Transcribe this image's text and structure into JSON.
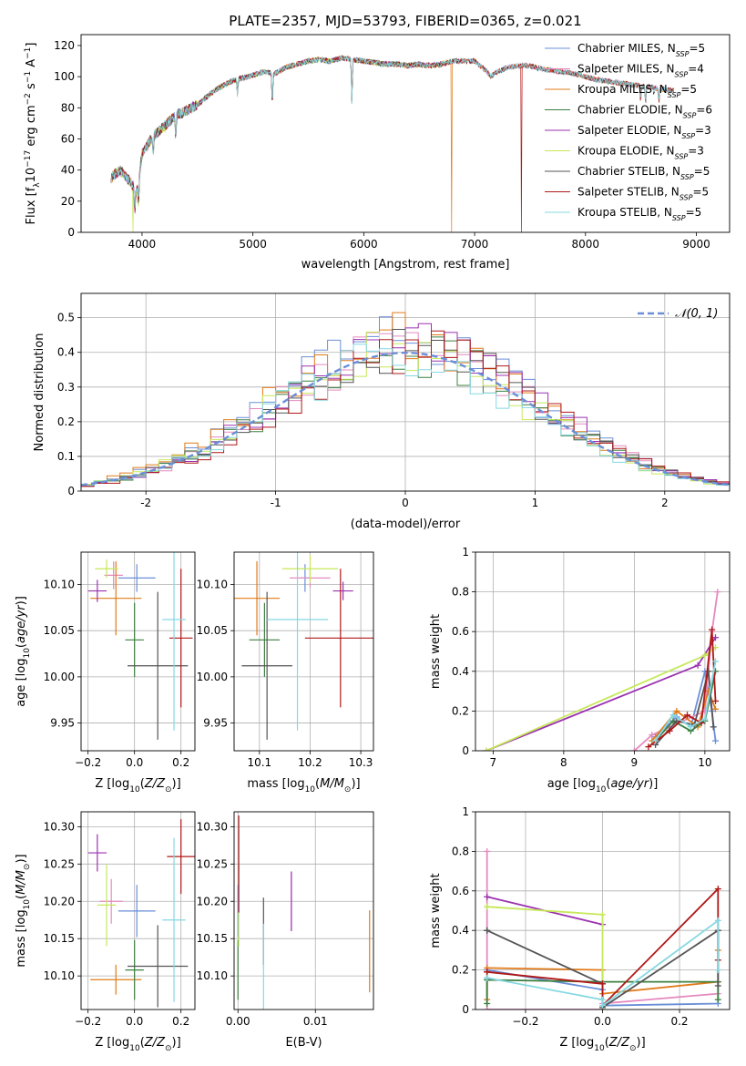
{
  "figure": {
    "title": "PLATE=2357, MJD=53793, FIBERID=0365, z=0.021"
  },
  "chart_data": [
    {
      "type": "line",
      "panel": "spectrum",
      "xlabel": "wavelength [Angstrom, rest frame]",
      "ylabel": "Flux [f_λ10^-17 erg cm^-2 s^-1 A^-1]",
      "xlim": [
        3450,
        9300
      ],
      "ylim": [
        0,
        127
      ],
      "xticks": [
        4000,
        5000,
        6000,
        7000,
        8000,
        9000
      ],
      "yticks": [
        0,
        20,
        40,
        60,
        80,
        100,
        120
      ],
      "grid": false,
      "legend_position": "top-right",
      "continuum": {
        "x": [
          3720,
          3800,
          3900,
          3950,
          4000,
          4100,
          4200,
          4300,
          4400,
          4500,
          4600,
          4700,
          4800,
          4900,
          5000,
          5100,
          5200,
          5300,
          5400,
          5500,
          5600,
          5700,
          5800,
          5900,
          6000,
          6100,
          6200,
          6300,
          6400,
          6500,
          6600,
          6700,
          6800,
          6900,
          7000,
          7100,
          7150,
          7200,
          7300,
          7400,
          7500,
          7600,
          7700,
          7800,
          7900,
          8000,
          8100,
          8200,
          8300,
          8400,
          8500,
          8600,
          8700,
          8800
        ],
        "y": [
          35,
          40,
          32,
          25,
          50,
          62,
          68,
          75,
          78,
          82,
          88,
          93,
          97,
          99,
          101,
          103,
          102,
          106,
          108,
          110,
          111,
          110,
          112,
          111,
          110,
          109,
          108,
          108,
          107,
          108,
          107,
          108,
          110,
          110,
          110,
          104,
          100,
          103,
          106,
          107,
          107,
          105,
          104,
          103,
          102,
          100,
          98,
          97,
          96,
          95,
          94,
          93,
          92,
          91
        ]
      },
      "absorption_features": [
        {
          "x": 3934,
          "y": 14
        },
        {
          "x": 3969,
          "y": 18
        },
        {
          "x": 4101,
          "y": 50
        },
        {
          "x": 4304,
          "y": 62
        },
        {
          "x": 4861,
          "y": 88
        },
        {
          "x": 5175,
          "y": 82
        },
        {
          "x": 5893,
          "y": 83
        },
        {
          "x": 8498,
          "y": 85
        },
        {
          "x": 8542,
          "y": 84
        },
        {
          "x": 8662,
          "y": 84
        }
      ],
      "glitches": [
        {
          "series": "Kroupa MILES, N_SSP=5",
          "x": 6790,
          "y": 0
        },
        {
          "series": "Salpeter STELIB, N_SSP=5",
          "x": 7420,
          "y": 0
        },
        {
          "series": "Kroupa ELODIE, N_SSP=3",
          "x": 3920,
          "y": 0
        }
      ],
      "series": [
        {
          "name": "Chabrier MILES, N_SSP=5",
          "color": "#6a8fd8",
          "wave_end": 8800
        },
        {
          "name": "Salpeter MILES, N_SSP=4",
          "color": "#e589c0",
          "wave_end": 8800
        },
        {
          "name": "Kroupa MILES, N_SSP=5",
          "color": "#e07b1a",
          "wave_end": 8800
        },
        {
          "name": "Chabrier ELODIE, N_SSP=6",
          "color": "#3c8040",
          "wave_end": 6800
        },
        {
          "name": "Salpeter ELODIE, N_SSP=3",
          "color": "#9b32b0",
          "wave_end": 6800
        },
        {
          "name": "Kroupa ELODIE, N_SSP=3",
          "color": "#c6e85a",
          "wave_end": 6800
        },
        {
          "name": "Chabrier STELIB, N_SSP=5",
          "color": "#555555",
          "wave_end": 8800
        },
        {
          "name": "Salpeter STELIB, N_SSP=5",
          "color": "#b01818",
          "wave_end": 8800
        },
        {
          "name": "Kroupa STELIB, N_SSP=5",
          "color": "#86d8e2",
          "wave_end": 8800
        }
      ]
    },
    {
      "type": "histogram",
      "panel": "residuals",
      "xlabel": "(data-model)/error",
      "ylabel": "Normed distribution",
      "xlim": [
        -2.5,
        2.5
      ],
      "ylim": [
        0,
        0.57
      ],
      "xticks": [
        -2,
        -1,
        0,
        1,
        2
      ],
      "yticks": [
        0.0,
        0.1,
        0.2,
        0.3,
        0.4,
        0.5
      ],
      "grid": true,
      "legend_position": "top-right",
      "legend": "𝒩(0, 1)",
      "bin_width": 0.1,
      "reference_curve": {
        "name": "N(0,1)",
        "mean": 0,
        "sigma": 1,
        "style": "dashed",
        "color": "#6a8fd8"
      },
      "series": [
        {
          "color": "#6a8fd8",
          "shift": 0.0,
          "scale": 1.1
        },
        {
          "color": "#e589c0",
          "shift": 0.04,
          "scale": 1.05
        },
        {
          "color": "#e07b1a",
          "shift": -0.03,
          "scale": 1.12
        },
        {
          "color": "#3c8040",
          "shift": 0.02,
          "scale": 1.0
        },
        {
          "color": "#9b32b0",
          "shift": 0.05,
          "scale": 1.08
        },
        {
          "color": "#c6e85a",
          "shift": -0.05,
          "scale": 1.02
        },
        {
          "color": "#555555",
          "shift": 0.01,
          "scale": 1.04
        },
        {
          "color": "#b01818",
          "shift": 0.08,
          "scale": 1.0
        },
        {
          "color": "#86d8e2",
          "shift": -0.02,
          "scale": 0.97
        }
      ]
    },
    {
      "type": "scatter",
      "panel": "age_vs_Z",
      "xlabel": "Z [log10(Z/Z⊙)]",
      "ylabel": "age  [log10(age/yr)]",
      "xlim": [
        -0.23,
        0.26
      ],
      "ylim": [
        9.92,
        10.135
      ],
      "xticks": [
        -0.2,
        0.0,
        0.2
      ],
      "xticklabels": [
        "−0.2",
        "0.0",
        "0.2"
      ],
      "yticks": [
        9.95,
        10.0,
        10.05,
        10.1
      ],
      "yticklabels": [
        "9.95",
        "10.00",
        "10.05",
        "10.10"
      ],
      "grid": true,
      "points": [
        {
          "color": "#6a8fd8",
          "x": 0.01,
          "xerr": 0.08,
          "y": 10.107,
          "yerr": 0.015
        },
        {
          "color": "#e589c0",
          "x": -0.09,
          "xerr": 0.04,
          "y": 10.11,
          "yerr": 0.015
        },
        {
          "color": "#e07b1a",
          "x": -0.08,
          "xerr": 0.11,
          "y": 10.085,
          "yerr": 0.04
        },
        {
          "color": "#3c8040",
          "x": 0.0,
          "xerr": 0.04,
          "y": 10.04,
          "yerr": 0.04
        },
        {
          "color": "#9b32b0",
          "x": -0.16,
          "xerr": 0.04,
          "y": 10.093,
          "yerr": 0.012
        },
        {
          "color": "#c6e85a",
          "x": -0.12,
          "xerr": 0.05,
          "y": 10.117,
          "yerr": 0.01
        },
        {
          "color": "#555555",
          "x": 0.1,
          "xerr": 0.13,
          "y": 10.012,
          "yerr": 0.08
        },
        {
          "color": "#b01818",
          "x": 0.2,
          "xerr": 0.05,
          "y": 10.042,
          "yerr": 0.075
        },
        {
          "color": "#86d8e2",
          "x": 0.17,
          "xerr": 0.05,
          "y": 10.062,
          "yerr": 0.12
        }
      ]
    },
    {
      "type": "scatter",
      "panel": "age_vs_mass",
      "xlabel": "mass [log10(M/M⊙)]",
      "xlim": [
        10.05,
        10.325
      ],
      "ylim": [
        9.92,
        10.135
      ],
      "xticks": [
        10.1,
        10.2,
        10.3
      ],
      "xticklabels": [
        "10.1",
        "10.2",
        "10.3"
      ],
      "yticks": [
        9.95,
        10.0,
        10.05,
        10.1
      ],
      "yticklabels": [
        "9.95",
        "10.00",
        "10.05",
        "10.10"
      ],
      "grid": true,
      "points": [
        {
          "color": "#6a8fd8",
          "x": 10.19,
          "xerr": 0.01,
          "y": 10.107,
          "yerr": 0.015
        },
        {
          "color": "#e589c0",
          "x": 10.2,
          "xerr": 0.04,
          "y": 10.107,
          "yerr": 0.01
        },
        {
          "color": "#e07b1a",
          "x": 10.095,
          "xerr": 0.045,
          "y": 10.085,
          "yerr": 0.04
        },
        {
          "color": "#3c8040",
          "x": 10.11,
          "xerr": 0.03,
          "y": 10.04,
          "yerr": 0.04
        },
        {
          "color": "#9b32b0",
          "x": 10.265,
          "xerr": 0.02,
          "y": 10.093,
          "yerr": 0.01
        },
        {
          "color": "#c6e85a",
          "x": 10.2,
          "xerr": 0.055,
          "y": 10.117,
          "yerr": 0.015
        },
        {
          "color": "#555555",
          "x": 10.115,
          "xerr": 0.05,
          "y": 10.012,
          "yerr": 0.08
        },
        {
          "color": "#b01818",
          "x": 10.26,
          "xerr": 0.07,
          "y": 10.042,
          "yerr": 0.075
        },
        {
          "color": "#86d8e2",
          "x": 10.175,
          "xerr": 0.06,
          "y": 10.062,
          "yerr": 0.12
        }
      ]
    },
    {
      "type": "line",
      "panel": "mass_weight_vs_age",
      "xlabel": "age  [log10(age/yr)]",
      "ylabel": "mass weight",
      "xlim": [
        6.75,
        10.35
      ],
      "ylim": [
        0,
        1.0
      ],
      "xticks": [
        7,
        8,
        9,
        10
      ],
      "yticks": [
        0.0,
        0.2,
        0.4,
        0.6,
        0.8,
        1.0
      ],
      "grid": true,
      "series": [
        {
          "color": "#6a8fd8",
          "x": [
            9.3,
            9.6,
            9.8,
            10.0,
            10.1,
            10.15
          ],
          "y": [
            0.07,
            0.17,
            0.12,
            0.4,
            0.2,
            0.05
          ]
        },
        {
          "color": "#e589c0",
          "x": [
            9.0,
            9.25,
            10.0,
            10.1,
            10.18
          ],
          "y": [
            0.0,
            0.08,
            0.2,
            0.6,
            0.8
          ]
        },
        {
          "color": "#e07b1a",
          "x": [
            9.25,
            9.6,
            9.9,
            10.05,
            10.15
          ],
          "y": [
            0.05,
            0.2,
            0.12,
            0.3,
            0.21
          ]
        },
        {
          "color": "#3c8040",
          "x": [
            9.3,
            9.55,
            9.8,
            10.0,
            10.15
          ],
          "y": [
            0.05,
            0.15,
            0.1,
            0.15,
            0.4
          ]
        },
        {
          "color": "#9b32b0",
          "x": [
            6.9,
            9.9,
            10.15
          ],
          "y": [
            0.0,
            0.43,
            0.57
          ]
        },
        {
          "color": "#c6e85a",
          "x": [
            6.9,
            10.0,
            10.15
          ],
          "y": [
            0.0,
            0.48,
            0.52
          ]
        },
        {
          "color": "#555555",
          "x": [
            9.3,
            9.6,
            9.85,
            10.05,
            10.12
          ],
          "y": [
            0.03,
            0.15,
            0.13,
            0.4,
            0.12
          ]
        },
        {
          "color": "#b01818",
          "x": [
            9.2,
            9.5,
            9.75,
            9.95,
            10.1,
            10.15
          ],
          "y": [
            0.02,
            0.1,
            0.18,
            0.14,
            0.61,
            0.25
          ]
        },
        {
          "color": "#86d8e2",
          "x": [
            9.3,
            9.55,
            9.8,
            10.0,
            10.15
          ],
          "y": [
            0.05,
            0.18,
            0.12,
            0.16,
            0.45
          ]
        }
      ]
    },
    {
      "type": "scatter",
      "panel": "mass_vs_Z",
      "xlabel": "Z [log10(Z/Z⊙)]",
      "ylabel": "mass [log10(M/M⊙)]",
      "xlim": [
        -0.23,
        0.26
      ],
      "ylim": [
        10.055,
        10.32
      ],
      "xticks": [
        -0.2,
        0.0,
        0.2
      ],
      "xticklabels": [
        "−0.2",
        "0.0",
        "0.2"
      ],
      "yticks": [
        10.1,
        10.15,
        10.2,
        10.25,
        10.3
      ],
      "yticklabels": [
        "10.10",
        "10.15",
        "10.20",
        "10.25",
        "10.30"
      ],
      "grid": true,
      "points": [
        {
          "color": "#6a8fd8",
          "x": 0.01,
          "xerr": 0.08,
          "y": 10.187,
          "yerr": 0.035
        },
        {
          "color": "#e589c0",
          "x": -0.1,
          "xerr": 0.05,
          "y": 10.2,
          "yerr": 0.03
        },
        {
          "color": "#e07b1a",
          "x": -0.08,
          "xerr": 0.11,
          "y": 10.095,
          "yerr": 0.02
        },
        {
          "color": "#3c8040",
          "x": 0.0,
          "xerr": 0.04,
          "y": 10.108,
          "yerr": 0.04
        },
        {
          "color": "#9b32b0",
          "x": -0.16,
          "xerr": 0.04,
          "y": 10.265,
          "yerr": 0.025
        },
        {
          "color": "#c6e85a",
          "x": -0.12,
          "xerr": 0.04,
          "y": 10.195,
          "yerr": 0.055
        },
        {
          "color": "#555555",
          "x": 0.1,
          "xerr": 0.13,
          "y": 10.113,
          "yerr": 0.055
        },
        {
          "color": "#b01818",
          "x": 0.2,
          "xerr": 0.06,
          "y": 10.26,
          "yerr": 0.05
        },
        {
          "color": "#86d8e2",
          "x": 0.17,
          "xerr": 0.05,
          "y": 10.175,
          "yerr": 0.11
        }
      ]
    },
    {
      "type": "scatter",
      "panel": "mass_vs_EBV",
      "xlabel": "E(B-V)",
      "xlim": [
        -0.0005,
        0.0175
      ],
      "ylim": [
        10.055,
        10.32
      ],
      "xticks": [
        0.0,
        0.01
      ],
      "xticklabels": [
        "0.00",
        "0.01"
      ],
      "yticks": [
        10.1,
        10.15,
        10.2,
        10.25,
        10.3
      ],
      "yticklabels": [
        "10.10",
        "10.15",
        "10.20",
        "10.25",
        "10.30"
      ],
      "grid": true,
      "points": [
        {
          "color": "#6a8fd8",
          "x": 0.0,
          "xerr": 0,
          "y": 10.187,
          "yerr": 0.035
        },
        {
          "color": "#e589c0",
          "x": 0.0069,
          "xerr": 0,
          "y": 10.2,
          "yerr": 0.04
        },
        {
          "color": "#e07b1a",
          "x": 0.017,
          "xerr": 0,
          "y": 10.133,
          "yerr": 0.055
        },
        {
          "color": "#3c8040",
          "x": 0.0,
          "xerr": 0,
          "y": 10.108,
          "yerr": 0.04
        },
        {
          "color": "#9b32b0",
          "x": 0.0069,
          "xerr": 0,
          "y": 10.2,
          "yerr": 0.04
        },
        {
          "color": "#c6e85a",
          "x": 0.0001,
          "xerr": 0,
          "y": 10.195,
          "yerr": 0.055
        },
        {
          "color": "#555555",
          "x": 0.0033,
          "xerr": 0,
          "y": 10.16,
          "yerr": 0.045
        },
        {
          "color": "#b01818",
          "x": 0.0001,
          "xerr": 0,
          "y": 10.25,
          "yerr": 0.065
        },
        {
          "color": "#86d8e2",
          "x": 0.0033,
          "xerr": 0,
          "y": 10.11,
          "yerr": 0.06
        }
      ]
    },
    {
      "type": "line",
      "panel": "mass_weight_vs_Z",
      "xlabel": "Z [log10(Z/Z⊙)]",
      "ylabel": "mass weight",
      "xlim": [
        -0.33,
        0.33
      ],
      "ylim": [
        0,
        1.0
      ],
      "xticks": [
        -0.2,
        0.0,
        0.2
      ],
      "xticklabels": [
        "−0.2",
        "0.0",
        "0.2"
      ],
      "yticks": [
        0.0,
        0.2,
        0.4,
        0.6,
        0.8,
        1.0
      ],
      "grid": true,
      "series": [
        {
          "color": "#6a8fd8",
          "x": [
            -0.3,
            -0.3,
            0.0,
            0.0,
            0.3,
            0.3
          ],
          "y": [
            0.15,
            0.2,
            0.1,
            0.02,
            0.03,
            0.4
          ]
        },
        {
          "color": "#e589c0",
          "x": [
            -0.3,
            -0.3,
            0.0,
            0.0,
            0.3
          ],
          "y": [
            0.8,
            0.0,
            0.0,
            0.03,
            0.08
          ]
        },
        {
          "color": "#e07b1a",
          "x": [
            -0.3,
            -0.3,
            0.0,
            0.0,
            0.3,
            0.3
          ],
          "y": [
            0.05,
            0.21,
            0.2,
            0.08,
            0.14,
            0.3
          ]
        },
        {
          "color": "#3c8040",
          "x": [
            -0.3,
            -0.3,
            0.0,
            0.3,
            0.3
          ],
          "y": [
            0.03,
            0.15,
            0.14,
            0.14,
            0.05
          ]
        },
        {
          "color": "#9b32b0",
          "x": [
            -0.3,
            0.0
          ],
          "y": [
            0.57,
            0.43
          ]
        },
        {
          "color": "#c6e85a",
          "x": [
            -0.3,
            -0.3,
            0.0,
            0.0
          ],
          "y": [
            0.52,
            0.52,
            0.48,
            0.0
          ]
        },
        {
          "color": "#555555",
          "x": [
            -0.3,
            -0.3,
            0.0,
            0.0,
            0.3,
            0.3
          ],
          "y": [
            0.4,
            0.4,
            0.13,
            0.01,
            0.4,
            0.12
          ]
        },
        {
          "color": "#b01818",
          "x": [
            -0.3,
            -0.3,
            0.0,
            0.0,
            0.3,
            0.3
          ],
          "y": [
            0.19,
            0.19,
            0.13,
            0.02,
            0.61,
            0.25
          ]
        },
        {
          "color": "#86d8e2",
          "x": [
            -0.3,
            -0.3,
            0.0,
            0.0,
            0.3,
            0.3
          ],
          "y": [
            0.16,
            0.16,
            0.05,
            0.02,
            0.45,
            0.2
          ]
        }
      ]
    }
  ]
}
